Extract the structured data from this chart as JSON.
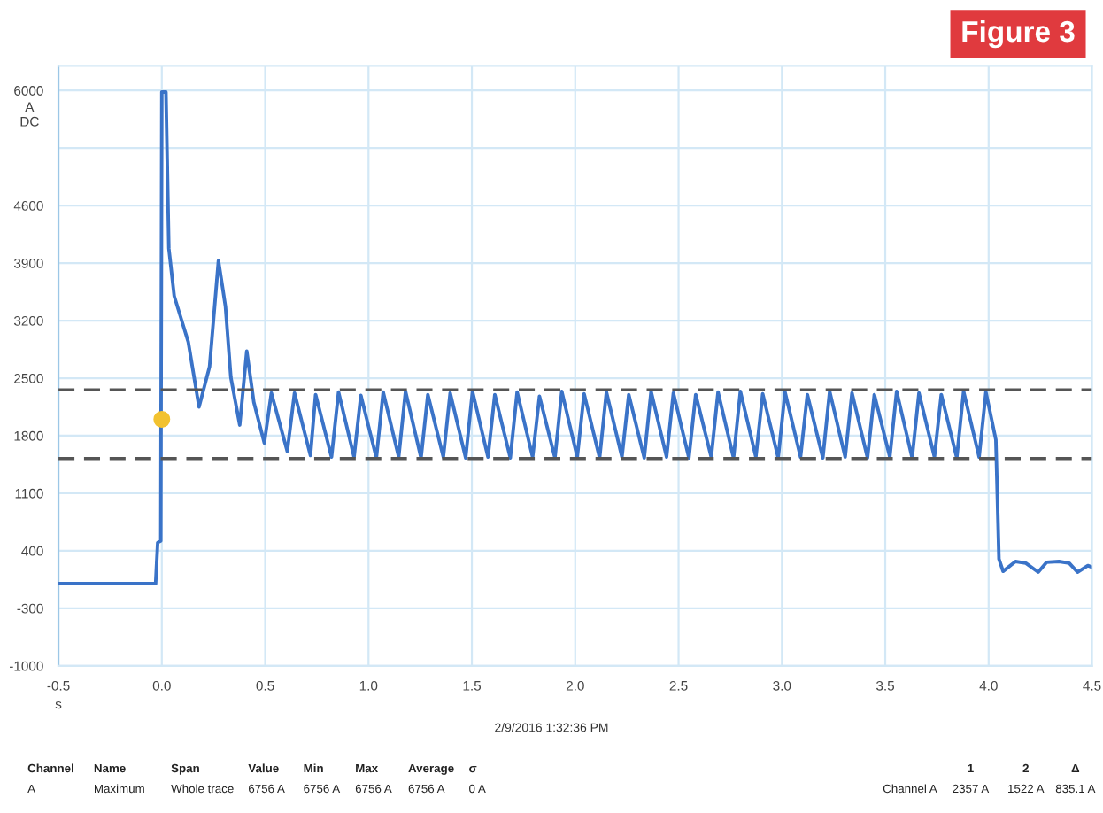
{
  "chart_data": {
    "type": "line",
    "title": "Figure 3",
    "xlabel": "s",
    "ylabel": "A\nDC",
    "xlim": [
      -0.5,
      4.5
    ],
    "xticks": [
      {
        "value": -0.5,
        "label": "-0.5"
      },
      {
        "value": 0,
        "label": "0.0"
      },
      0.5,
      {
        "value": 1,
        "label": "1.0"
      },
      1.5,
      {
        "value": 2,
        "label": "2.0"
      },
      2.5,
      {
        "value": 3,
        "label": "3.0"
      },
      3.5,
      {
        "value": 4,
        "label": "4.0"
      },
      4.5
    ],
    "ylim": [
      -1000,
      6300
    ],
    "yticks": [
      {
        "value": -1000,
        "label": "-1000"
      },
      {
        "value": -300,
        "label": "-300"
      },
      {
        "value": 400,
        "label": "400"
      },
      {
        "value": 1100,
        "label": "1100"
      },
      {
        "value": 1800,
        "label": "1800"
      },
      {
        "value": 2500,
        "label": "2500"
      },
      {
        "value": 3200,
        "label": "3200"
      },
      {
        "value": 3900,
        "label": "3900"
      },
      {
        "value": 4600,
        "label": "4600"
      },
      {
        "value": 5300,
        "label": null
      },
      {
        "value": 6000,
        "label": "6000"
      }
    ],
    "grid": true,
    "legend": false,
    "line_style": "solid",
    "marker": "none",
    "series": [
      {
        "color": "#3a73c8",
        "x": [
          -0.5,
          -0.03,
          -0.02,
          -0.005,
          0.0,
          0.02,
          0.034,
          0.06,
          0.094,
          0.128,
          0.18,
          0.231,
          0.274,
          0.308,
          0.334,
          0.377,
          0.411,
          0.445,
          0.496,
          0.53,
          0.607,
          0.642,
          0.719,
          0.744,
          0.821,
          0.855,
          0.93,
          0.963,
          1.038,
          1.071,
          1.146,
          1.179,
          1.254,
          1.287,
          1.362,
          1.395,
          1.47,
          1.503,
          1.578,
          1.611,
          1.686,
          1.719,
          1.794,
          1.827,
          1.902,
          1.935,
          2.01,
          2.043,
          2.118,
          2.151,
          2.226,
          2.259,
          2.334,
          2.367,
          2.442,
          2.475,
          2.55,
          2.583,
          2.658,
          2.691,
          2.766,
          2.799,
          2.874,
          2.907,
          2.982,
          3.015,
          3.09,
          3.123,
          3.198,
          3.231,
          3.306,
          3.339,
          3.414,
          3.447,
          3.522,
          3.555,
          3.63,
          3.663,
          3.738,
          3.771,
          3.846,
          3.879,
          3.954,
          3.987,
          4.035,
          4.05,
          4.07,
          4.13,
          4.18,
          4.24,
          4.28,
          4.34,
          4.39,
          4.43,
          4.48,
          4.5
        ],
        "values": [
          0,
          0,
          500,
          520,
          5980,
          5980,
          4080,
          3500,
          3220,
          2940,
          2150,
          2640,
          3930,
          3370,
          2510,
          1930,
          2830,
          2210,
          1710,
          2320,
          1610,
          2320,
          1560,
          2300,
          1540,
          2330,
          1540,
          2290,
          1530,
          2330,
          1540,
          2340,
          1530,
          2300,
          1540,
          2320,
          1530,
          2340,
          1540,
          2300,
          1530,
          2330,
          1540,
          2280,
          1530,
          2340,
          1540,
          2310,
          1530,
          2330,
          1540,
          2300,
          1530,
          2340,
          1540,
          2320,
          1530,
          2300,
          1540,
          2330,
          1530,
          2340,
          1540,
          2310,
          1530,
          2330,
          1540,
          2300,
          1530,
          2340,
          1540,
          2320,
          1530,
          2300,
          1540,
          2340,
          1530,
          2320,
          1540,
          2300,
          1530,
          2340,
          1540,
          2330,
          1750,
          300,
          150,
          270,
          250,
          140,
          260,
          270,
          250,
          140,
          220,
          200
        ]
      },
      {
        "type": "scatter",
        "color": "#f2c230",
        "marker": "circle",
        "x": [
          0.0
        ],
        "values": [
          2000
        ]
      }
    ],
    "ref_lines": [
      {
        "axis": "y",
        "value": 2357,
        "color": "#555555",
        "line_style": "dashed"
      },
      {
        "axis": "y",
        "value": 1522,
        "color": "#555555",
        "line_style": "dashed"
      }
    ],
    "annotations": [
      "2/9/2016 1:32:36 PM",
      "Channel\tName\tSpan\tValue\tMin\tMax\tAverage\tσ",
      "A\tMaximum\tWhole trace\t6756 A\t6756 A\t6756 A\t6756 A\t0 A",
      "\t1\t2\tΔ",
      "Channel A\t2357 A\t1522 A\t835.1 A"
    ]
  }
}
